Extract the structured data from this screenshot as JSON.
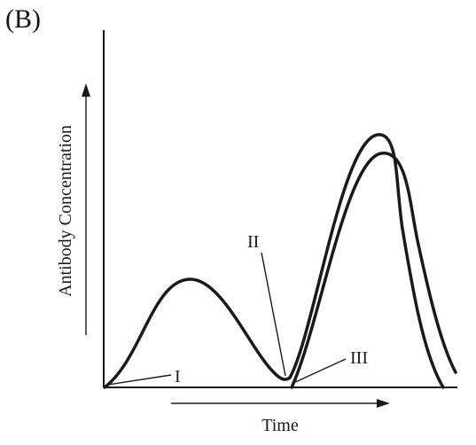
{
  "figure": {
    "panel_label": "(B)"
  },
  "axes": {
    "y_label": "Antibody Concentration",
    "x_label": "Time"
  },
  "markers": {
    "first": "I",
    "second": "II",
    "third": "III"
  },
  "curves": [
    {
      "name": "primary-response-curve"
    },
    {
      "name": "secondary-response-curve-upper"
    },
    {
      "name": "secondary-response-curve-lower"
    }
  ]
}
